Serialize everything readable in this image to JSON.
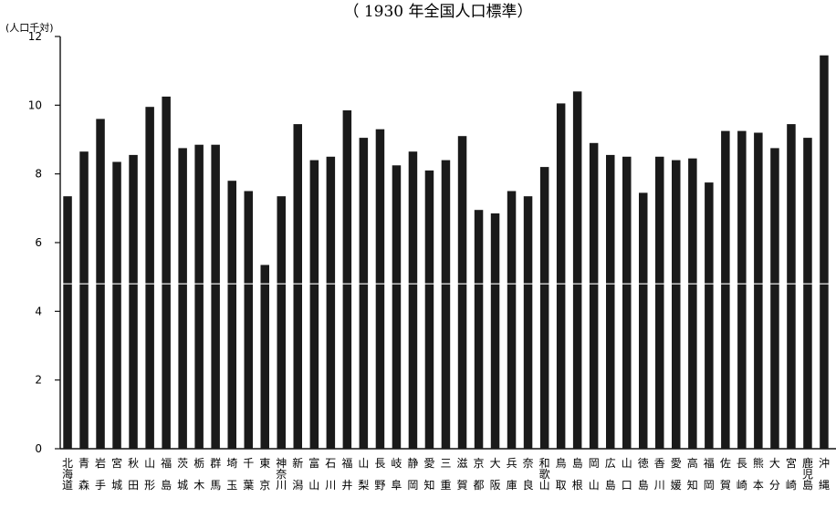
{
  "chart_data": {
    "type": "bar",
    "title": "（ 1930 年全国人口標準）",
    "ylabel": "(人口千対)",
    "xlabel": "",
    "ylim": [
      0,
      12
    ],
    "yticks": [
      0,
      2,
      4,
      6,
      8,
      10,
      12
    ],
    "grid": false,
    "reference_line": 4.8,
    "bar_color": "#1a1a1a",
    "categories": [
      "北海道",
      "青森",
      "岩手",
      "宮城",
      "秋田",
      "山形",
      "福島",
      "茨城",
      "栃木",
      "群馬",
      "埼玉",
      "千葉",
      "東京",
      "神奈川",
      "新潟",
      "富山",
      "石川",
      "福井",
      "山梨",
      "長野",
      "岐阜",
      "静岡",
      "愛知",
      "三重",
      "滋賀",
      "京都",
      "大阪",
      "兵庫",
      "奈良",
      "和歌山",
      "鳥取",
      "島根",
      "岡山",
      "広島",
      "山口",
      "徳島",
      "香川",
      "愛媛",
      "高知",
      "福岡",
      "佐賀",
      "長崎",
      "熊本",
      "大分",
      "宮崎",
      "鹿児島",
      "沖縄"
    ],
    "category_labels": [
      [
        "北",
        "海",
        "道"
      ],
      [
        "青",
        "森"
      ],
      [
        "岩",
        "手"
      ],
      [
        "宮",
        "城"
      ],
      [
        "秋",
        "田"
      ],
      [
        "山",
        "形"
      ],
      [
        "福",
        "島"
      ],
      [
        "茨",
        "城"
      ],
      [
        "栃",
        "木"
      ],
      [
        "群",
        "馬"
      ],
      [
        "埼",
        "玉"
      ],
      [
        "千",
        "葉"
      ],
      [
        "東",
        "京"
      ],
      [
        "神",
        "奈",
        "川"
      ],
      [
        "新",
        "潟"
      ],
      [
        "富",
        "山"
      ],
      [
        "石",
        "川"
      ],
      [
        "福",
        "井"
      ],
      [
        "山",
        "梨"
      ],
      [
        "長",
        "野"
      ],
      [
        "岐",
        "阜"
      ],
      [
        "静",
        "岡"
      ],
      [
        "愛",
        "知"
      ],
      [
        "三",
        "重"
      ],
      [
        "滋",
        "賀"
      ],
      [
        "京",
        "都"
      ],
      [
        "大",
        "阪"
      ],
      [
        "兵",
        "庫"
      ],
      [
        "奈",
        "良"
      ],
      [
        "和",
        "歌",
        "山"
      ],
      [
        "鳥",
        "取"
      ],
      [
        "島",
        "根"
      ],
      [
        "岡",
        "山"
      ],
      [
        "広",
        "島"
      ],
      [
        "山",
        "口"
      ],
      [
        "徳",
        "島"
      ],
      [
        "香",
        "川"
      ],
      [
        "愛",
        "媛"
      ],
      [
        "高",
        "知"
      ],
      [
        "福",
        "岡"
      ],
      [
        "佐",
        "賀"
      ],
      [
        "長",
        "崎"
      ],
      [
        "熊",
        "本"
      ],
      [
        "大",
        "分"
      ],
      [
        "宮",
        "崎"
      ],
      [
        "鹿",
        "児",
        "島"
      ],
      [
        "沖",
        "縄"
      ]
    ],
    "values": [
      7.35,
      8.65,
      9.6,
      8.35,
      8.55,
      9.95,
      10.25,
      8.75,
      8.85,
      8.85,
      7.8,
      7.5,
      5.35,
      7.35,
      9.45,
      8.4,
      8.5,
      9.85,
      9.05,
      9.3,
      8.25,
      8.65,
      8.1,
      8.4,
      9.1,
      6.95,
      6.85,
      7.5,
      7.35,
      8.2,
      10.05,
      10.4,
      8.9,
      8.55,
      8.5,
      7.45,
      8.5,
      8.4,
      8.45,
      7.75,
      9.25,
      9.25,
      9.2,
      8.75,
      9.45,
      9.05,
      11.45
    ]
  }
}
